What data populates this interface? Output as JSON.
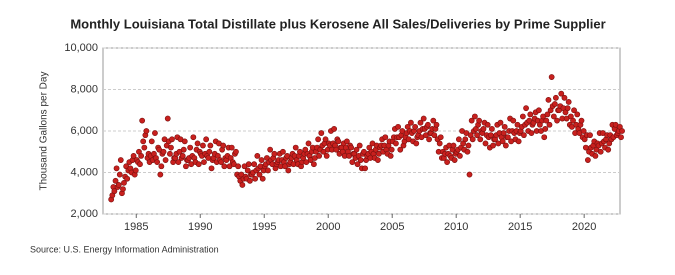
{
  "chart_data": {
    "type": "scatter",
    "title": "Monthly Louisiana Total Distillate plus Kerosene All Sales/Deliveries by Prime Supplier",
    "y_label": "Thousand Gallons per Day",
    "source": "Source: U.S. Energy Information Administration",
    "xlim": [
      1982.4,
      2022.8
    ],
    "xticks": [
      1985,
      1990,
      1995,
      2000,
      2005,
      2010,
      2015,
      2020
    ],
    "ylim": [
      2000,
      10000
    ],
    "yticks": [
      {
        "value": 2000,
        "label": "2,000"
      },
      {
        "value": 4000,
        "label": "4,000"
      },
      {
        "value": 6000,
        "label": "6,000"
      },
      {
        "value": 8000,
        "label": "8,000"
      },
      {
        "value": 10000,
        "label": "10,000"
      }
    ],
    "grid": true,
    "series": [
      {
        "name": "Louisiana",
        "color": "#c8201e",
        "x": [
          1983.04,
          1983.13,
          1983.21,
          1983.29,
          1983.38,
          1983.46,
          1983.54,
          1983.63,
          1983.71,
          1983.79,
          1983.88,
          1983.96,
          1984.04,
          1984.13,
          1984.21,
          1984.29,
          1984.38,
          1984.46,
          1984.54,
          1984.63,
          1984.71,
          1984.79,
          1984.88,
          1984.96,
          1985.04,
          1985.13,
          1985.21,
          1985.29,
          1985.38,
          1985.46,
          1985.54,
          1985.63,
          1985.71,
          1985.79,
          1985.88,
          1985.96,
          1986.04,
          1986.13,
          1986.21,
          1986.29,
          1986.38,
          1986.46,
          1986.54,
          1986.63,
          1986.71,
          1986.79,
          1986.88,
          1986.96,
          1987.04,
          1987.13,
          1987.21,
          1987.29,
          1987.38,
          1987.46,
          1987.54,
          1987.63,
          1987.71,
          1987.79,
          1987.88,
          1987.96,
          1988.04,
          1988.13,
          1988.21,
          1988.29,
          1988.38,
          1988.46,
          1988.54,
          1988.63,
          1988.71,
          1988.79,
          1988.88,
          1988.96,
          1989.04,
          1989.13,
          1989.21,
          1989.29,
          1989.38,
          1989.46,
          1989.54,
          1989.63,
          1989.71,
          1989.79,
          1989.88,
          1989.96,
          1990.04,
          1990.13,
          1990.21,
          1990.29,
          1990.38,
          1990.46,
          1990.54,
          1990.63,
          1990.71,
          1990.79,
          1990.88,
          1990.96,
          1991.04,
          1991.13,
          1991.21,
          1991.29,
          1991.38,
          1991.46,
          1991.54,
          1991.63,
          1991.71,
          1991.79,
          1991.88,
          1991.96,
          1992.04,
          1992.13,
          1992.21,
          1992.29,
          1992.38,
          1992.46,
          1992.54,
          1992.63,
          1992.71,
          1992.79,
          1992.88,
          1992.96,
          1993.04,
          1993.13,
          1993.21,
          1993.29,
          1993.38,
          1993.46,
          1993.54,
          1993.63,
          1993.71,
          1993.79,
          1993.88,
          1993.96,
          1994.04,
          1994.13,
          1994.21,
          1994.29,
          1994.38,
          1994.46,
          1994.54,
          1994.63,
          1994.71,
          1994.79,
          1994.88,
          1994.96,
          1995.04,
          1995.13,
          1995.21,
          1995.29,
          1995.38,
          1995.46,
          1995.54,
          1995.63,
          1995.71,
          1995.79,
          1995.88,
          1995.96,
          1996.04,
          1996.13,
          1996.21,
          1996.29,
          1996.38,
          1996.46,
          1996.54,
          1996.63,
          1996.71,
          1996.79,
          1996.88,
          1996.96,
          1997.04,
          1997.13,
          1997.21,
          1997.29,
          1997.38,
          1997.46,
          1997.54,
          1997.63,
          1997.71,
          1997.79,
          1997.88,
          1997.96,
          1998.04,
          1998.13,
          1998.21,
          1998.29,
          1998.38,
          1998.46,
          1998.54,
          1998.63,
          1998.71,
          1998.79,
          1998.88,
          1998.96,
          1999.04,
          1999.13,
          1999.21,
          1999.29,
          1999.38,
          1999.46,
          1999.54,
          1999.63,
          1999.71,
          1999.79,
          1999.88,
          1999.96,
          2000.04,
          2000.13,
          2000.21,
          2000.29,
          2000.38,
          2000.46,
          2000.54,
          2000.63,
          2000.71,
          2000.79,
          2000.88,
          2000.96,
          2001.04,
          2001.13,
          2001.21,
          2001.29,
          2001.38,
          2001.46,
          2001.54,
          2001.63,
          2001.71,
          2001.79,
          2001.88,
          2001.96,
          2002.04,
          2002.13,
          2002.21,
          2002.29,
          2002.38,
          2002.46,
          2002.54,
          2002.63,
          2002.71,
          2002.79,
          2002.88,
          2002.96,
          2003.04,
          2003.13,
          2003.21,
          2003.29,
          2003.38,
          2003.46,
          2003.54,
          2003.63,
          2003.71,
          2003.79,
          2003.88,
          2003.96,
          2004.04,
          2004.13,
          2004.21,
          2004.29,
          2004.38,
          2004.46,
          2004.54,
          2004.63,
          2004.71,
          2004.79,
          2004.88,
          2004.96,
          2005.04,
          2005.13,
          2005.21,
          2005.29,
          2005.38,
          2005.46,
          2005.54,
          2005.63,
          2005.71,
          2005.79,
          2005.88,
          2005.96,
          2006.04,
          2006.13,
          2006.21,
          2006.29,
          2006.38,
          2006.46,
          2006.54,
          2006.63,
          2006.71,
          2006.79,
          2006.88,
          2006.96,
          2007.04,
          2007.13,
          2007.21,
          2007.29,
          2007.38,
          2007.46,
          2007.54,
          2007.63,
          2007.71,
          2007.79,
          2007.88,
          2007.96,
          2008.04,
          2008.13,
          2008.21,
          2008.29,
          2008.38,
          2008.46,
          2008.54,
          2008.63,
          2008.71,
          2008.79,
          2008.88,
          2008.96,
          2009.04,
          2009.13,
          2009.21,
          2009.29,
          2009.38,
          2009.46,
          2009.54,
          2009.63,
          2009.71,
          2009.79,
          2009.88,
          2009.96,
          2010.04,
          2010.13,
          2010.21,
          2010.29,
          2010.38,
          2010.46,
          2010.54,
          2010.63,
          2010.71,
          2010.79,
          2010.88,
          2010.96,
          2011.04,
          2011.13,
          2011.21,
          2011.29,
          2011.38,
          2011.46,
          2011.54,
          2011.63,
          2011.71,
          2011.79,
          2011.88,
          2011.96,
          2012.04,
          2012.13,
          2012.21,
          2012.29,
          2012.38,
          2012.46,
          2012.54,
          2012.63,
          2012.71,
          2012.79,
          2012.88,
          2012.96,
          2013.04,
          2013.13,
          2013.21,
          2013.29,
          2013.38,
          2013.46,
          2013.54,
          2013.63,
          2013.71,
          2013.79,
          2013.88,
          2013.96,
          2014.04,
          2014.13,
          2014.21,
          2014.29,
          2014.38,
          2014.46,
          2014.54,
          2014.63,
          2014.71,
          2014.79,
          2014.88,
          2014.96,
          2015.04,
          2015.13,
          2015.21,
          2015.29,
          2015.38,
          2015.46,
          2015.54,
          2015.63,
          2015.71,
          2015.79,
          2015.88,
          2015.96,
          2016.04,
          2016.13,
          2016.21,
          2016.29,
          2016.38,
          2016.46,
          2016.54,
          2016.63,
          2016.71,
          2016.79,
          2016.88,
          2016.96,
          2017.04,
          2017.13,
          2017.21,
          2017.29,
          2017.38,
          2017.46,
          2017.54,
          2017.63,
          2017.71,
          2017.79,
          2017.88,
          2017.96,
          2018.04,
          2018.13,
          2018.21,
          2018.29,
          2018.38,
          2018.46,
          2018.54,
          2018.63,
          2018.71,
          2018.79,
          2018.88,
          2018.96,
          2019.04,
          2019.13,
          2019.21,
          2019.29,
          2019.38,
          2019.46,
          2019.54,
          2019.63,
          2019.71,
          2019.79,
          2019.88,
          2019.96,
          2020.04,
          2020.13,
          2020.21,
          2020.29,
          2020.38,
          2020.46,
          2020.54,
          2020.63,
          2020.71,
          2020.79,
          2020.88,
          2020.96,
          2021.04,
          2021.13,
          2021.21,
          2021.29,
          2021.38,
          2021.46,
          2021.54,
          2021.63,
          2021.71,
          2021.79,
          2021.88,
          2021.96,
          2022.04,
          2022.13,
          2022.21,
          2022.29,
          2022.38,
          2022.46,
          2022.54,
          2022.63,
          2022.71,
          2022.79,
          2022.88,
          2022.96
        ],
        "values": [
          2700,
          2900,
          3300,
          3100,
          3600,
          4200,
          3300,
          3400,
          3900,
          4600,
          3000,
          3200,
          3500,
          3800,
          4300,
          3700,
          4100,
          4500,
          4200,
          4000,
          4600,
          4800,
          3900,
          4100,
          4600,
          4500,
          5000,
          4400,
          4800,
          6500,
          5500,
          5200,
          5800,
          6000,
          4700,
          4900,
          4500,
          4800,
          5500,
          4600,
          4900,
          5900,
          4700,
          4500,
          5200,
          5100,
          3900,
          4300,
          4900,
          5000,
          5600,
          4600,
          5300,
          6600,
          5500,
          4900,
          5200,
          5600,
          4500,
          4700,
          4700,
          4900,
          5700,
          4500,
          5000,
          5600,
          4700,
          4800,
          5100,
          5500,
          4300,
          4600,
          4600,
          4700,
          5200,
          4400,
          4800,
          5700,
          4700,
          4500,
          5100,
          5400,
          4400,
          5000,
          4900,
          4800,
          5300,
          4500,
          4900,
          5600,
          4800,
          4700,
          5000,
          5300,
          4200,
          4600,
          4700,
          4900,
          5500,
          4500,
          4800,
          5400,
          4600,
          4500,
          5100,
          5300,
          4300,
          4700,
          4600,
          4800,
          5200,
          4300,
          4700,
          5200,
          4500,
          4400,
          4900,
          5000,
          3900,
          4300,
          3800,
          3600,
          3900,
          3400,
          3700,
          4300,
          3800,
          3700,
          4100,
          4400,
          3600,
          3900,
          3900,
          4000,
          4400,
          3700,
          4100,
          4800,
          4200,
          3900,
          4300,
          4600,
          3700,
          4100,
          4300,
          4400,
          4700,
          4100,
          4500,
          5100,
          4600,
          4400,
          4700,
          4900,
          4200,
          4400,
          4500,
          4600,
          4900,
          4300,
          4600,
          5000,
          4500,
          4300,
          4700,
          4800,
          4100,
          4400,
          4500,
          4700,
          4900,
          4400,
          4800,
          5200,
          4600,
          4400,
          4800,
          5000,
          4300,
          4500,
          4700,
          4900,
          5100,
          4500,
          4900,
          5400,
          4800,
          4600,
          5000,
          5200,
          4400,
          4700,
          5000,
          5200,
          5600,
          4800,
          5100,
          5900,
          5300,
          5000,
          5400,
          5600,
          4800,
          5100,
          5400,
          5300,
          6000,
          5100,
          5400,
          6100,
          5300,
          5100,
          5600,
          5500,
          4900,
          5200,
          5200,
          5000,
          5400,
          4800,
          5200,
          5500,
          5000,
          4800,
          5300,
          5200,
          4500,
          4900,
          4900,
          4700,
          5100,
          4400,
          4800,
          5300,
          4600,
          4200,
          4900,
          5000,
          4200,
          4600,
          4800,
          4900,
          5200,
          4700,
          5000,
          5400,
          4900,
          4700,
          5100,
          5300,
          4600,
          4900,
          5200,
          5300,
          5600,
          5000,
          5300,
          5700,
          5100,
          4900,
          5300,
          5500,
          4800,
          5100,
          5500,
          5700,
          6100,
          5400,
          5700,
          6200,
          5700,
          5100,
          5800,
          6000,
          5300,
          5500,
          5700,
          5900,
          6200,
          5600,
          6000,
          6400,
          5900,
          5500,
          6000,
          6200,
          5400,
          5700,
          5800,
          6000,
          6400,
          5700,
          6100,
          6600,
          6100,
          5800,
          6200,
          6300,
          5600,
          5900,
          5900,
          6100,
          6500,
          5800,
          6100,
          6300,
          5600,
          5000,
          5400,
          5700,
          4700,
          5000,
          4700,
          4900,
          5200,
          4500,
          4900,
          5300,
          4800,
          4700,
          5100,
          5300,
          4600,
          4900,
          5000,
          5100,
          5600,
          4800,
          5200,
          6000,
          5400,
          5100,
          5600,
          5900,
          5000,
          5300,
          3900,
          5800,
          6500,
          5600,
          6000,
          6700,
          6100,
          5800,
          6300,
          6500,
          5600,
          6000,
          5900,
          6100,
          6400,
          5400,
          5800,
          6300,
          5700,
          5200,
          5800,
          6100,
          5300,
          5600,
          5600,
          5800,
          6300,
          5400,
          5900,
          6400,
          5700,
          5500,
          5900,
          6200,
          5300,
          5700,
          5700,
          6000,
          6600,
          5500,
          6000,
          6500,
          5900,
          5600,
          6000,
          6300,
          5500,
          5900,
          6000,
          6200,
          6700,
          5800,
          6300,
          7100,
          6400,
          6000,
          6500,
          6800,
          5900,
          6300,
          6400,
          6600,
          6900,
          6000,
          6500,
          7000,
          6300,
          6000,
          6500,
          6700,
          5700,
          6100,
          6500,
          6800,
          7500,
          6300,
          7000,
          8600,
          7200,
          6700,
          7300,
          7600,
          6500,
          7000,
          7000,
          7200,
          7800,
          6600,
          7100,
          7600,
          6900,
          6600,
          7100,
          7400,
          6300,
          6700,
          6200,
          6500,
          7000,
          5900,
          6300,
          6800,
          6100,
          5900,
          6300,
          6500,
          5700,
          6000,
          5600,
          5200,
          5800,
          4600,
          5000,
          5800,
          5200,
          4900,
          5300,
          5500,
          4800,
          5100,
          5400,
          5300,
          5900,
          5000,
          5400,
          5900,
          5500,
          5200,
          5600,
          5800,
          5100,
          5400,
          5800,
          5600,
          6300,
          5700,
          6100,
          6300,
          5800,
          5900,
          6000,
          6200,
          5700,
          6000
        ]
      }
    ]
  }
}
